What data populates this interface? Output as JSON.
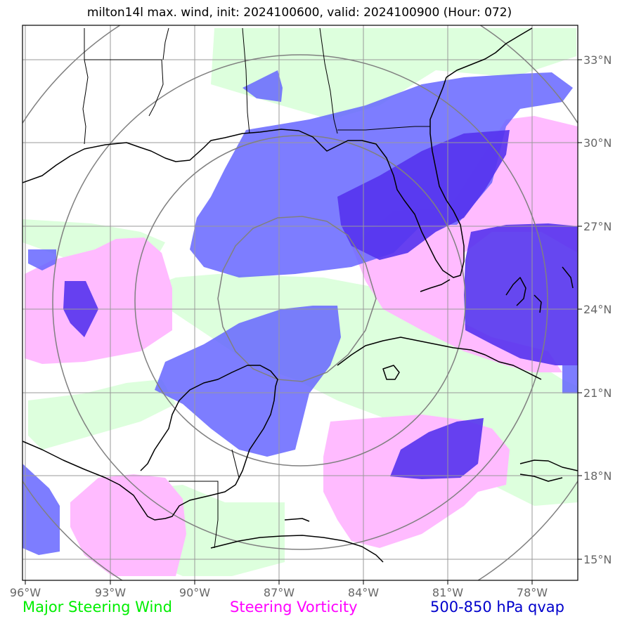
{
  "title": "milton14l max. wind, init: 2024100600, valid: 2024100900 (Hour: 072)",
  "lon_labels": [
    "96°W",
    "93°W",
    "90°W",
    "87°W",
    "84°W",
    "81°W",
    "78°W"
  ],
  "lat_labels": [
    "33°N",
    "30°N",
    "27°N",
    "24°N",
    "21°N",
    "18°N",
    "15°N"
  ],
  "legend": [
    {
      "label": "Major Steering Wind",
      "color": "#00ee00"
    },
    {
      "label": "Steering Vorticity",
      "color": "#ff00ff"
    },
    {
      "label": "500-850 hPa qvap",
      "color": "#0000cc"
    }
  ],
  "colors": {
    "wind_fill": "#ddffdd",
    "vorticity_fill": "#ffbbff",
    "qvap_fill": "#6666ff",
    "qvap_dark_fill": "#5533ee",
    "grid": "#999999",
    "range_rings": "#808080",
    "coastline": "#000000"
  },
  "map_extent": {
    "lon_min": -96,
    "lon_max": -76,
    "lat_min": 14.2,
    "lat_max": 34.2
  }
}
